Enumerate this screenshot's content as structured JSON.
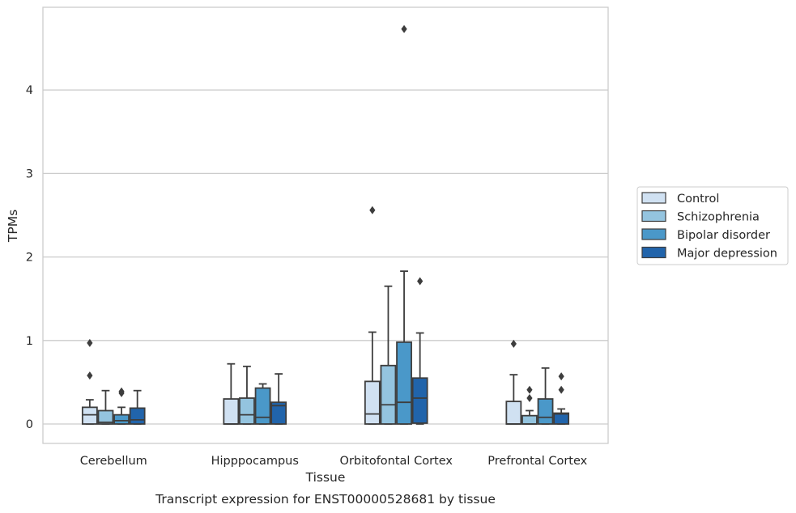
{
  "caption": "Transcript expression for ENST00000528681 by tissue",
  "chart_data": {
    "type": "boxplot",
    "title": "",
    "xlabel": "Tissue",
    "ylabel": "TPMs",
    "categories": [
      "Cerebellum",
      "Hipppocampus",
      "Orbitofontal Cortex",
      "Prefrontal Cortex"
    ],
    "ylim": [
      -0.23,
      5.0
    ],
    "yticks": [
      0,
      1,
      2,
      3,
      4
    ],
    "grid": "horizontal",
    "legend_position": "right",
    "series": [
      {
        "name": "Control",
        "color": "#d0e1f2",
        "boxes": [
          {
            "q1": 0.0,
            "median": 0.11,
            "q3": 0.2,
            "whisker_low": 0.0,
            "whisker_high": 0.29,
            "outliers": [
              0.58,
              0.97
            ]
          },
          {
            "q1": 0.0,
            "median": 0.0,
            "q3": 0.3,
            "whisker_low": 0.0,
            "whisker_high": 0.72,
            "outliers": []
          },
          {
            "q1": 0.0,
            "median": 0.12,
            "q3": 0.51,
            "whisker_low": 0.0,
            "whisker_high": 1.1,
            "outliers": [
              2.56
            ]
          },
          {
            "q1": 0.0,
            "median": 0.0,
            "q3": 0.27,
            "whisker_low": 0.0,
            "whisker_high": 0.59,
            "outliers": [
              0.96
            ]
          }
        ]
      },
      {
        "name": "Schizophrenia",
        "color": "#94c4df",
        "boxes": [
          {
            "q1": 0.0,
            "median": 0.02,
            "q3": 0.16,
            "whisker_low": 0.0,
            "whisker_high": 0.4,
            "outliers": []
          },
          {
            "q1": 0.0,
            "median": 0.11,
            "q3": 0.31,
            "whisker_low": 0.0,
            "whisker_high": 0.69,
            "outliers": []
          },
          {
            "q1": 0.0,
            "median": 0.23,
            "q3": 0.7,
            "whisker_low": 0.0,
            "whisker_high": 1.65,
            "outliers": []
          },
          {
            "q1": 0.0,
            "median": 0.0,
            "q3": 0.1,
            "whisker_low": 0.0,
            "whisker_high": 0.16,
            "outliers": [
              0.31,
              0.41
            ]
          }
        ]
      },
      {
        "name": "Bipolar disorder",
        "color": "#4a98c9",
        "boxes": [
          {
            "q1": 0.0,
            "median": 0.04,
            "q3": 0.11,
            "whisker_low": 0.0,
            "whisker_high": 0.2,
            "outliers": [
              0.37,
              0.39
            ]
          },
          {
            "q1": 0.0,
            "median": 0.08,
            "q3": 0.43,
            "whisker_low": 0.0,
            "whisker_high": 0.48,
            "outliers": []
          },
          {
            "q1": 0.0,
            "median": 0.26,
            "q3": 0.98,
            "whisker_low": 0.0,
            "whisker_high": 1.83,
            "outliers": [
              4.73
            ]
          },
          {
            "q1": 0.0,
            "median": 0.08,
            "q3": 0.3,
            "whisker_low": 0.0,
            "whisker_high": 0.67,
            "outliers": []
          }
        ]
      },
      {
        "name": "Major depression",
        "color": "#2164ab",
        "boxes": [
          {
            "q1": 0.0,
            "median": 0.05,
            "q3": 0.19,
            "whisker_low": 0.0,
            "whisker_high": 0.4,
            "outliers": []
          },
          {
            "q1": 0.0,
            "median": 0.22,
            "q3": 0.26,
            "whisker_low": 0.0,
            "whisker_high": 0.6,
            "outliers": []
          },
          {
            "q1": 0.01,
            "median": 0.31,
            "q3": 0.55,
            "whisker_low": 0.0,
            "whisker_high": 1.09,
            "outliers": [
              1.71
            ]
          },
          {
            "q1": 0.0,
            "median": 0.12,
            "q3": 0.13,
            "whisker_low": 0.0,
            "whisker_high": 0.18,
            "outliers": [
              0.41,
              0.57
            ]
          }
        ]
      }
    ]
  }
}
